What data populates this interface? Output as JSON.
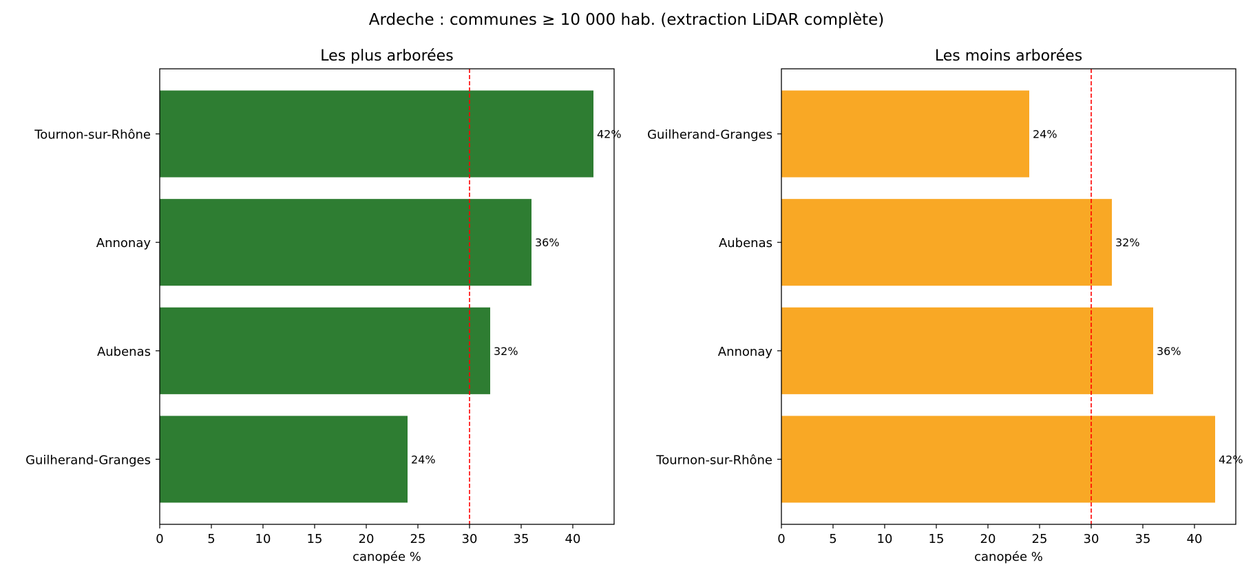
{
  "suptitle": "Ardeche : communes ≥ 10 000 hab. (extraction LiDAR complète)",
  "chart_data": [
    {
      "type": "bar",
      "orientation": "horizontal",
      "title": "Les plus arborées",
      "xlabel": "canopée %",
      "ylabel": "",
      "categories": [
        "Tournon-sur-Rhône",
        "Annonay",
        "Aubenas",
        "Guilherand-Granges"
      ],
      "values": [
        42,
        36,
        32,
        24
      ],
      "value_labels": [
        "42%",
        "36%",
        "32%",
        "24%"
      ],
      "bar_color": "#2e7d32",
      "reference_line": {
        "x": 30,
        "color": "#ff0000",
        "style": "dashed"
      },
      "xlim": [
        0,
        44
      ],
      "xticks": [
        0,
        5,
        10,
        15,
        20,
        25,
        30,
        35,
        40
      ],
      "grid": false
    },
    {
      "type": "bar",
      "orientation": "horizontal",
      "title": "Les moins arborées",
      "xlabel": "canopée %",
      "ylabel": "",
      "categories": [
        "Guilherand-Granges",
        "Aubenas",
        "Annonay",
        "Tournon-sur-Rhône"
      ],
      "values": [
        24,
        32,
        36,
        42
      ],
      "value_labels": [
        "24%",
        "32%",
        "36%",
        "42%"
      ],
      "bar_color": "#f9a825",
      "reference_line": {
        "x": 30,
        "color": "#ff0000",
        "style": "dashed"
      },
      "xlim": [
        0,
        44
      ],
      "xticks": [
        0,
        5,
        10,
        15,
        20,
        25,
        30,
        35,
        40
      ],
      "grid": false
    }
  ]
}
